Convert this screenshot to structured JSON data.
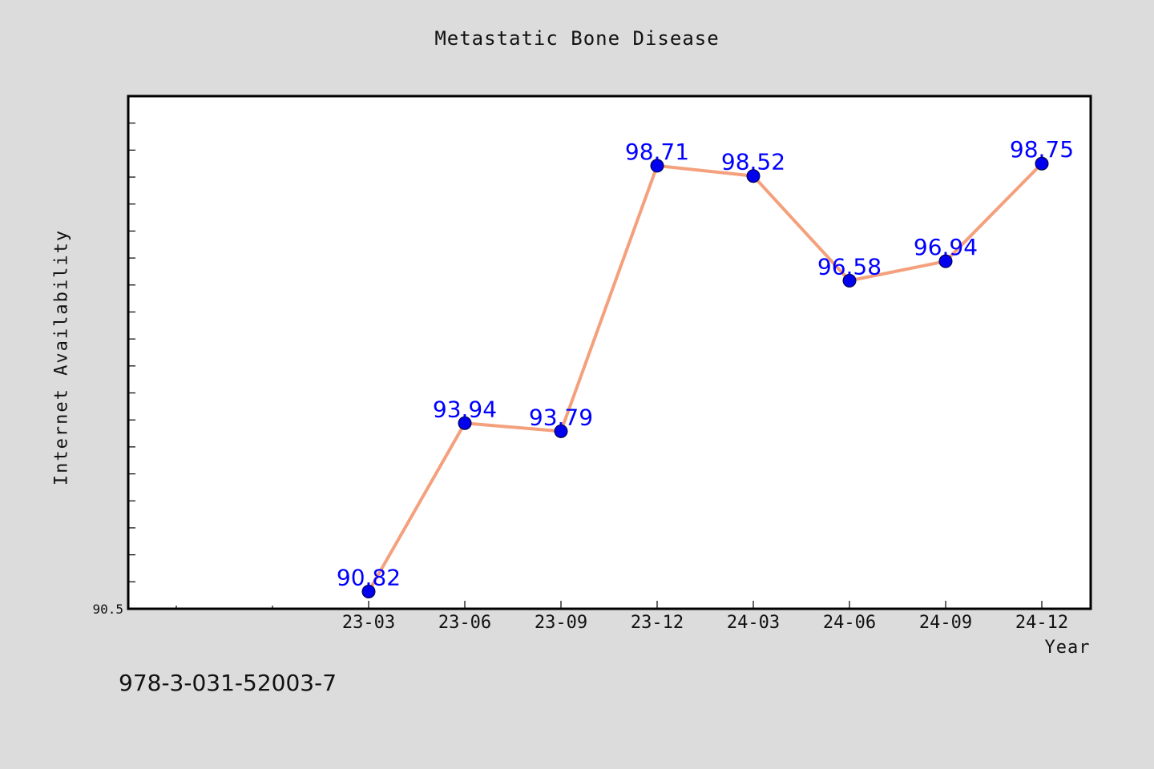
{
  "footer": {
    "code": "978-3-031-52003-7"
  },
  "colors": {
    "background": "#dcdcdc",
    "plot_background": "#ffffff",
    "line": "#f4a07c",
    "marker": "#0000ee",
    "data_label": "#0000ff"
  },
  "chart_data": {
    "type": "line",
    "title": "Metastatic Bone Disease",
    "xlabel": "Year",
    "ylabel": "Internet Availability",
    "categories": [
      "23-03",
      "23-06",
      "23-09",
      "23-12",
      "24-03",
      "24-06",
      "24-09",
      "24-12"
    ],
    "values": [
      90.82,
      93.94,
      93.79,
      98.71,
      98.52,
      96.58,
      96.94,
      98.75
    ],
    "data_labels": [
      "90.82",
      "93.94",
      "93.79",
      "98.71",
      "98.52",
      "96.58",
      "96.94",
      "98.75"
    ],
    "y_tick_labels": [
      "90.5"
    ],
    "ylim": [
      90.5,
      100
    ],
    "grid": false,
    "legend": "none",
    "marker": "circle"
  }
}
